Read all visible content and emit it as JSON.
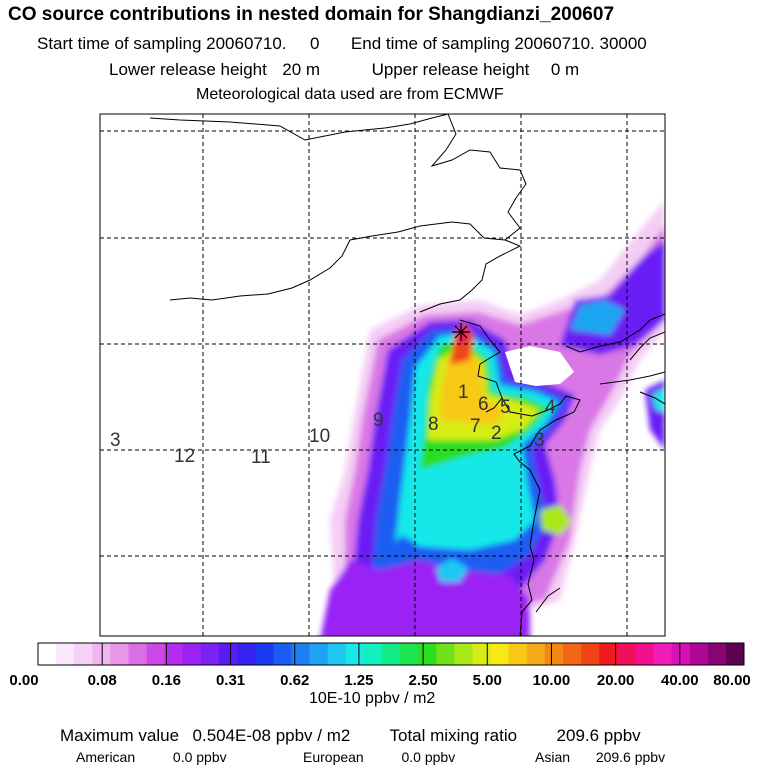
{
  "header": {
    "title": "CO  source contributions in nested domain for Shangdianzi_200607",
    "start_label": "Start time of sampling",
    "start_value": "20060710.",
    "start_hour": "0",
    "end_label": "End time of sampling",
    "end_value": "20060710. 30000",
    "lower_label": "Lower release height",
    "lower_value": "20 m",
    "upper_label": "Upper release height",
    "upper_value": "0 m",
    "met_line": "Meteorological data used are from ECMWF"
  },
  "chart_data": {
    "type": "heatmap",
    "colorbar": {
      "tick_labels": [
        "0.00",
        "0.08",
        "0.16",
        "0.31",
        "0.62",
        "1.25",
        "2.50",
        "5.00",
        "10.00",
        "20.00",
        "40.00",
        "80.00"
      ],
      "unit": "10E-10 ppbv / m2",
      "colors": [
        "#ffffff",
        "#fbe8fb",
        "#f6d0f6",
        "#f1b6f1",
        "#e896ea",
        "#dc6ee3",
        "#cd49e7",
        "#b52cf0",
        "#9a22f4",
        "#7d22f5",
        "#5a1cf4",
        "#3322f2",
        "#1b38f2",
        "#1a5df2",
        "#1d80f2",
        "#1ea4f2",
        "#1ec8f2",
        "#18e8ea",
        "#10f0c0",
        "#12ec88",
        "#1ce450",
        "#2cde20",
        "#6ee21a",
        "#a8e818",
        "#d8ec16",
        "#f8e816",
        "#f8c816",
        "#f6a816",
        "#f48816",
        "#f26616",
        "#f04416",
        "#f01a20",
        "#f0105a",
        "#f21090",
        "#f21cb8",
        "#d810b8",
        "#b00896",
        "#860474",
        "#5c0250"
      ]
    },
    "domain": "nested domain",
    "receptor": "Shangdianzi",
    "map_labels": [
      "3",
      "12",
      "11",
      "10",
      "9",
      "8",
      "7",
      "1",
      "6",
      "5",
      "4",
      "2",
      "3"
    ],
    "stats": {
      "max_label": "Maximum value",
      "max_value": "0.504E-08 ppbv / m2",
      "total_label": "Total mixing ratio",
      "total_value": "209.6 ppbv",
      "regions": [
        {
          "name": "American",
          "value": "0.0 ppbv"
        },
        {
          "name": "European",
          "value": "0.0 ppbv"
        },
        {
          "name": "Asian",
          "value": "209.6 ppbv"
        }
      ]
    }
  }
}
